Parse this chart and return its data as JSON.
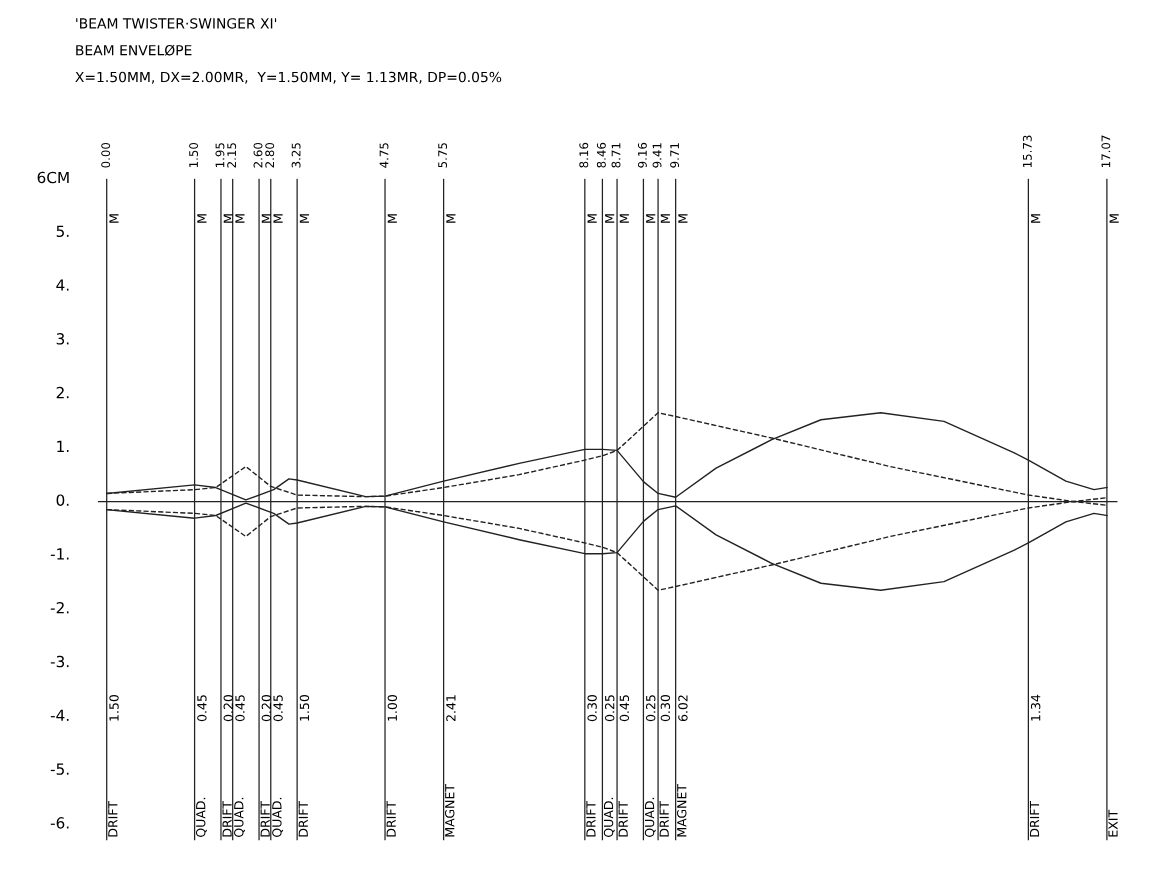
{
  "chart_data": {
    "type": "line",
    "title": "'BEAM TWISTER·SWINGER XI'",
    "subtitle": "BEAM ENVELØPE",
    "xlim": [
      -0.15,
      17.25
    ],
    "xticks": [
      {
        "value": 0,
        "label": "0.00"
      },
      {
        "value": 1.5,
        "label": "1.50"
      },
      {
        "value": 1.95,
        "label": "1.95"
      },
      {
        "value": 2.15,
        "label": "2.15"
      },
      {
        "value": 2.6,
        "label": "2.60"
      },
      {
        "value": 2.8,
        "label": "2.80"
      },
      {
        "value": 3.25,
        "label": "3.25"
      },
      {
        "value": 4.75,
        "label": "4.75"
      },
      {
        "value": 5.75,
        "label": "5.75"
      },
      {
        "value": 8.16,
        "label": "8.16"
      },
      {
        "value": 8.46,
        "label": "8.46"
      },
      {
        "value": 8.71,
        "label": "8.71"
      },
      {
        "value": 9.16,
        "label": "9.16"
      },
      {
        "value": 9.41,
        "label": "9.41"
      },
      {
        "value": 9.71,
        "label": "9.71"
      },
      {
        "value": 15.73,
        "label": "15.73"
      },
      {
        "value": 17.07,
        "label": "17.07"
      }
    ],
    "ylim": [
      -6.3,
      6
    ],
    "yticks": [
      {
        "value": -6,
        "label": "-6."
      },
      {
        "value": -5,
        "label": "-5."
      },
      {
        "value": -4,
        "label": "-4."
      },
      {
        "value": -3,
        "label": "-3."
      },
      {
        "value": -2,
        "label": "-2."
      },
      {
        "value": -1,
        "label": "-1."
      },
      {
        "value": 0,
        "label": "0."
      },
      {
        "value": 1,
        "label": "1."
      },
      {
        "value": 2,
        "label": "2."
      },
      {
        "value": 3,
        "label": "3."
      },
      {
        "value": 4,
        "label": "4."
      },
      {
        "value": 5,
        "label": "5."
      },
      {
        "value": 6,
        "label": "6CM"
      }
    ],
    "grid": false,
    "legend": false,
    "series": [
      {
        "color": "#222222",
        "line_style": "solid",
        "x": [
          0,
          1.5,
          1.86,
          2.375,
          2.85,
          3.11,
          3.25,
          4.42,
          4.75,
          5.75,
          7.04,
          8.16,
          8.46,
          8.71,
          9.16,
          9.41,
          9.71,
          10.4,
          11.35,
          12.19,
          13.21,
          14.29,
          15.48,
          15.73,
          16.37,
          16.85,
          17.07
        ],
        "values": [
          0.15,
          0.31,
          0.26,
          0.03,
          0.22,
          0.42,
          0.4,
          0.09,
          0.1,
          0.38,
          0.71,
          0.97,
          0.97,
          0.95,
          0.37,
          0.15,
          0.08,
          0.62,
          1.15,
          1.52,
          1.65,
          1.49,
          0.91,
          0.77,
          0.38,
          0.22,
          0.26
        ]
      },
      {
        "color": "#222222",
        "line_style": "solid",
        "x": [
          0,
          1.5,
          1.86,
          2.375,
          2.85,
          3.11,
          3.25,
          4.42,
          4.75,
          5.75,
          7.04,
          8.16,
          8.46,
          8.71,
          9.16,
          9.41,
          9.71,
          10.4,
          11.35,
          12.19,
          13.21,
          14.29,
          15.48,
          15.73,
          16.37,
          16.85,
          17.07
        ],
        "values": [
          -0.15,
          -0.31,
          -0.26,
          -0.03,
          -0.22,
          -0.42,
          -0.4,
          -0.09,
          -0.1,
          -0.38,
          -0.71,
          -0.97,
          -0.97,
          -0.95,
          -0.37,
          -0.15,
          -0.08,
          -0.62,
          -1.15,
          -1.52,
          -1.65,
          -1.49,
          -0.91,
          -0.77,
          -0.38,
          -0.22,
          -0.26
        ]
      },
      {
        "color": "#222222",
        "line_style": "dashed",
        "x": [
          0,
          1.5,
          1.86,
          2.375,
          2.8,
          3.25,
          4.42,
          4.75,
          5.75,
          7.04,
          8.16,
          8.46,
          8.71,
          9.16,
          9.41,
          9.71,
          11.35,
          13.37,
          15.73,
          16.5,
          17.07
        ],
        "values": [
          0.15,
          0.22,
          0.26,
          0.65,
          0.28,
          0.12,
          0.09,
          0.1,
          0.26,
          0.5,
          0.77,
          0.85,
          0.95,
          1.4,
          1.65,
          1.58,
          1.18,
          0.65,
          0.12,
          0.0,
          0.07
        ]
      },
      {
        "color": "#222222",
        "line_style": "dashed",
        "x": [
          0,
          1.5,
          1.86,
          2.375,
          2.8,
          3.25,
          4.42,
          4.75,
          5.75,
          7.04,
          8.16,
          8.46,
          8.71,
          9.16,
          9.41,
          9.71,
          11.35,
          13.37,
          15.73,
          16.5,
          17.07
        ],
        "values": [
          -0.15,
          -0.22,
          -0.26,
          -0.65,
          -0.28,
          -0.12,
          -0.09,
          -0.1,
          -0.26,
          -0.5,
          -0.77,
          -0.85,
          -0.95,
          -1.4,
          -1.65,
          -1.58,
          -1.18,
          -0.65,
          -0.12,
          0.0,
          -0.07
        ]
      }
    ],
    "ref_lines": [
      {
        "axis": "y",
        "value": 0,
        "color": "#222222"
      },
      {
        "axis": "x",
        "value": 0,
        "label": "DRIFT",
        "color": "#222222"
      },
      {
        "axis": "x",
        "value": 1.5,
        "label": "QUAD.",
        "color": "#222222"
      },
      {
        "axis": "x",
        "value": 1.95,
        "label": "DRIFT",
        "color": "#222222"
      },
      {
        "axis": "x",
        "value": 2.15,
        "label": "QUAD.",
        "color": "#222222"
      },
      {
        "axis": "x",
        "value": 2.6,
        "label": "DRIFT",
        "color": "#222222"
      },
      {
        "axis": "x",
        "value": 2.8,
        "label": "QUAD.",
        "color": "#222222"
      },
      {
        "axis": "x",
        "value": 3.25,
        "label": "DRIFT",
        "color": "#222222"
      },
      {
        "axis": "x",
        "value": 4.75,
        "label": "DRIFT",
        "color": "#222222"
      },
      {
        "axis": "x",
        "value": 5.75,
        "label": "MAGNET",
        "color": "#222222"
      },
      {
        "axis": "x",
        "value": 8.16,
        "label": "DRIFT",
        "color": "#222222"
      },
      {
        "axis": "x",
        "value": 8.46,
        "label": "QUAD.",
        "color": "#222222"
      },
      {
        "axis": "x",
        "value": 8.71,
        "label": "DRIFT",
        "color": "#222222"
      },
      {
        "axis": "x",
        "value": 9.16,
        "label": "QUAD.",
        "color": "#222222"
      },
      {
        "axis": "x",
        "value": 9.41,
        "label": "DRIFT",
        "color": "#222222"
      },
      {
        "axis": "x",
        "value": 9.71,
        "label": "MAGNET",
        "color": "#222222"
      },
      {
        "axis": "x",
        "value": 15.73,
        "label": "DRIFT",
        "color": "#222222"
      },
      {
        "axis": "x",
        "value": 17.07,
        "label": "EXIT",
        "color": "#222222"
      }
    ],
    "annotations": [
      "X=1.50MM, DX=2.00MR,  Y=1.50MM, Y= 1.13MR, DP=0.05%",
      "M",
      "M",
      "M",
      "M",
      "M",
      "M",
      "M",
      "M",
      "M",
      "M",
      "M",
      "M",
      "M",
      "M",
      "M",
      "M",
      "M",
      "1.50",
      "0.45",
      "0.20",
      "0.45",
      "0.20",
      "0.45",
      "1.50",
      "1.00",
      "2.41",
      "0.30",
      "0.25",
      "0.45",
      "0.25",
      "0.30",
      "6.02",
      "1.34"
    ]
  }
}
